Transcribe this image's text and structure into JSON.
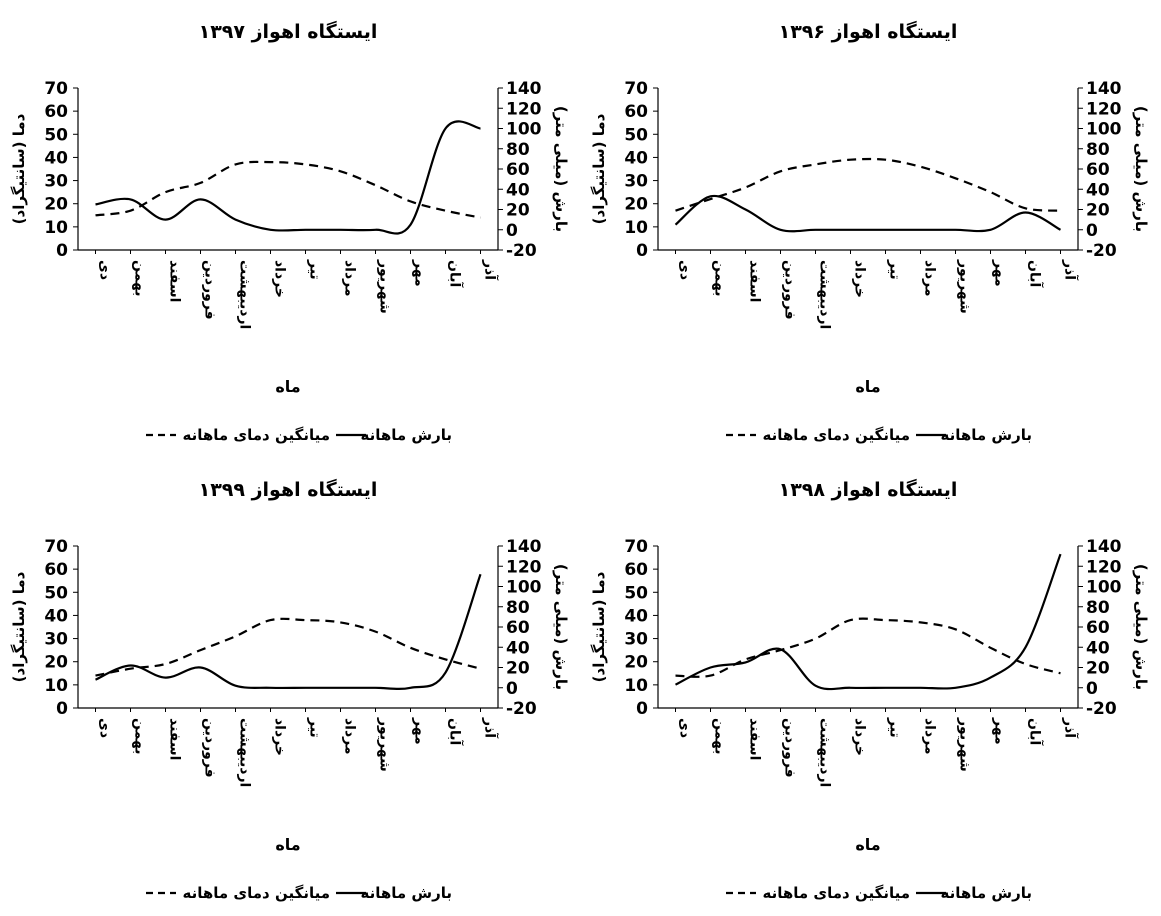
{
  "charts": [
    {
      "title": "ایستگاه اهواز ۱۳۹۷",
      "ylabel_left": "دما (سانتیگراد)",
      "ylabel_right": "بارش (میلی متر)",
      "xlabel": "ماه",
      "legend_solid": "بارش ماهانه",
      "legend_dashed": "میانگین دمای ماهانه"
    },
    {
      "title": "ایستگاه اهواز ۱۳۹۶",
      "ylabel_left": "دما (سانتیگراد)",
      "ylabel_right": "بارش (میلی متر)",
      "xlabel": "ماه",
      "legend_solid": "بارش ماهانه",
      "legend_dashed": "میانگین دمای ماهانه"
    },
    {
      "title": "ایستگاه اهواز ۱۳۹۹",
      "ylabel_left": "دما (سانتیگراد)",
      "ylabel_right": "بارش (میلی متر)",
      "xlabel": "ماه",
      "legend_solid": "بارش ماهانه",
      "legend_dashed": "میانگین دمای ماهانه"
    },
    {
      "title": "ایستگاه اهواز ۱۳۹۸",
      "ylabel_left": "دما (سانتیگراد)",
      "ylabel_right": "بارش (میلی متر)",
      "xlabel": "ماه",
      "legend_solid": "بارش ماهانه",
      "legend_dashed": "میانگین دمای ماهانه"
    }
  ],
  "chart_data": [
    {
      "type": "line",
      "categories": [
        "دی",
        "بهمن",
        "اسفند",
        "فروردین",
        "اردیبهشت",
        "خرداد",
        "تیر",
        "مرداد",
        "شهریور",
        "مهر",
        "آبان",
        "آذر"
      ],
      "left_axis": {
        "ylim": [
          0,
          70
        ],
        "ticks": [
          0,
          10,
          20,
          30,
          40,
          50,
          60,
          70
        ]
      },
      "right_axis": {
        "ylim": [
          -20,
          140
        ],
        "ticks": [
          -20,
          0,
          20,
          40,
          60,
          80,
          100,
          120,
          140
        ]
      },
      "series": [
        {
          "name": "بارش ماهانه",
          "style": "solid",
          "axis": "right",
          "values": [
            25,
            30,
            10,
            30,
            10,
            0,
            0,
            0,
            0,
            5,
            100,
            100
          ]
        },
        {
          "name": "میانگین دمای ماهانه",
          "style": "dashed",
          "axis": "left",
          "values": [
            15,
            17,
            25,
            29,
            37,
            38,
            37,
            34,
            28,
            21,
            17,
            14
          ]
        }
      ]
    },
    {
      "type": "line",
      "categories": [
        "دی",
        "بهمن",
        "اسفند",
        "فروردین",
        "اردیبهشت",
        "خرداد",
        "تیر",
        "مرداد",
        "شهریور",
        "مهر",
        "آبان",
        "آذر"
      ],
      "left_axis": {
        "ylim": [
          0,
          70
        ],
        "ticks": [
          0,
          10,
          20,
          30,
          40,
          50,
          60,
          70
        ]
      },
      "right_axis": {
        "ylim": [
          -20,
          140
        ],
        "ticks": [
          -20,
          0,
          20,
          40,
          60,
          80,
          100,
          120,
          140
        ]
      },
      "series": [
        {
          "name": "بارش ماهانه",
          "style": "solid",
          "axis": "right",
          "values": [
            5,
            33,
            20,
            0,
            0,
            0,
            0,
            0,
            0,
            0,
            17,
            0
          ]
        },
        {
          "name": "میانگین دمای ماهانه",
          "style": "dashed",
          "axis": "left",
          "values": [
            17,
            22,
            27,
            34,
            37,
            39,
            39,
            36,
            31,
            25,
            18,
            17
          ]
        }
      ]
    },
    {
      "type": "line",
      "categories": [
        "دی",
        "بهمن",
        "اسفند",
        "فروردین",
        "اردیبهشت",
        "خرداد",
        "تیر",
        "مرداد",
        "شهریور",
        "مهر",
        "آبان",
        "آذر"
      ],
      "left_axis": {
        "ylim": [
          0,
          70
        ],
        "ticks": [
          0,
          10,
          20,
          30,
          40,
          50,
          60,
          70
        ]
      },
      "right_axis": {
        "ylim": [
          -20,
          140
        ],
        "ticks": [
          -20,
          0,
          20,
          40,
          60,
          80,
          100,
          120,
          140
        ]
      },
      "series": [
        {
          "name": "بارش ماهانه",
          "style": "solid",
          "axis": "right",
          "values": [
            8,
            22,
            10,
            20,
            2,
            0,
            0,
            0,
            0,
            0,
            15,
            112
          ]
        },
        {
          "name": "میانگین دمای ماهانه",
          "style": "dashed",
          "axis": "left",
          "values": [
            14,
            17,
            19,
            25,
            31,
            38,
            38,
            37,
            33,
            26,
            21,
            17
          ]
        }
      ]
    },
    {
      "type": "line",
      "categories": [
        "دی",
        "بهمن",
        "اسفند",
        "فروردین",
        "اردیبهشت",
        "خرداد",
        "تیر",
        "مرداد",
        "شهریور",
        "مهر",
        "آبان",
        "آذر"
      ],
      "left_axis": {
        "ylim": [
          0,
          70
        ],
        "ticks": [
          0,
          10,
          20,
          30,
          40,
          50,
          60,
          70
        ]
      },
      "right_axis": {
        "ylim": [
          -20,
          140
        ],
        "ticks": [
          -20,
          0,
          20,
          40,
          60,
          80,
          100,
          120,
          140
        ]
      },
      "series": [
        {
          "name": "بارش ماهانه",
          "style": "solid",
          "axis": "right",
          "values": [
            3,
            20,
            25,
            38,
            2,
            0,
            0,
            0,
            0,
            10,
            40,
            132
          ]
        },
        {
          "name": "میانگین دمای ماهانه",
          "style": "dashed",
          "axis": "left",
          "values": [
            14,
            14,
            21,
            25,
            30,
            38,
            38,
            37,
            34,
            26,
            19,
            15
          ]
        }
      ]
    }
  ]
}
